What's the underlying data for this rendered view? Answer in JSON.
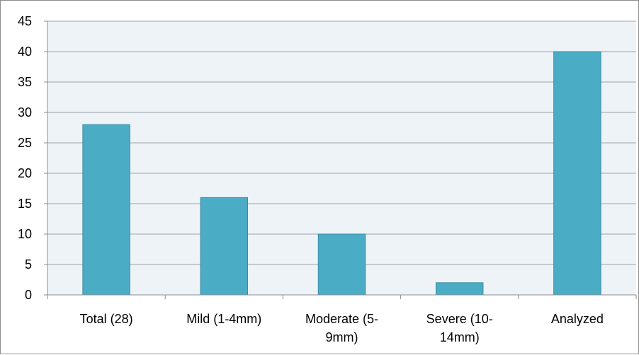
{
  "chart_data": {
    "type": "bar",
    "categories": [
      [
        "Total (28)"
      ],
      [
        "Mild (1-4mm)"
      ],
      [
        "Moderate (5-",
        "9mm)"
      ],
      [
        "Severe (10-",
        "14mm)"
      ],
      [
        "Analyzed"
      ]
    ],
    "values": [
      28,
      16,
      10,
      2,
      40
    ],
    "yticks": [
      "0",
      "5",
      "10",
      "15",
      "20",
      "25",
      "30",
      "35",
      "40",
      "45"
    ],
    "ylim": [
      0,
      45
    ],
    "grid": true,
    "legend": "none",
    "colors": {
      "bar_fill": "#4bacc6",
      "bar_stroke": "#3a8da3",
      "plot_background": "#eef3f8",
      "gridline": "#9aa3ad",
      "axis": "#8c8c8c"
    }
  }
}
